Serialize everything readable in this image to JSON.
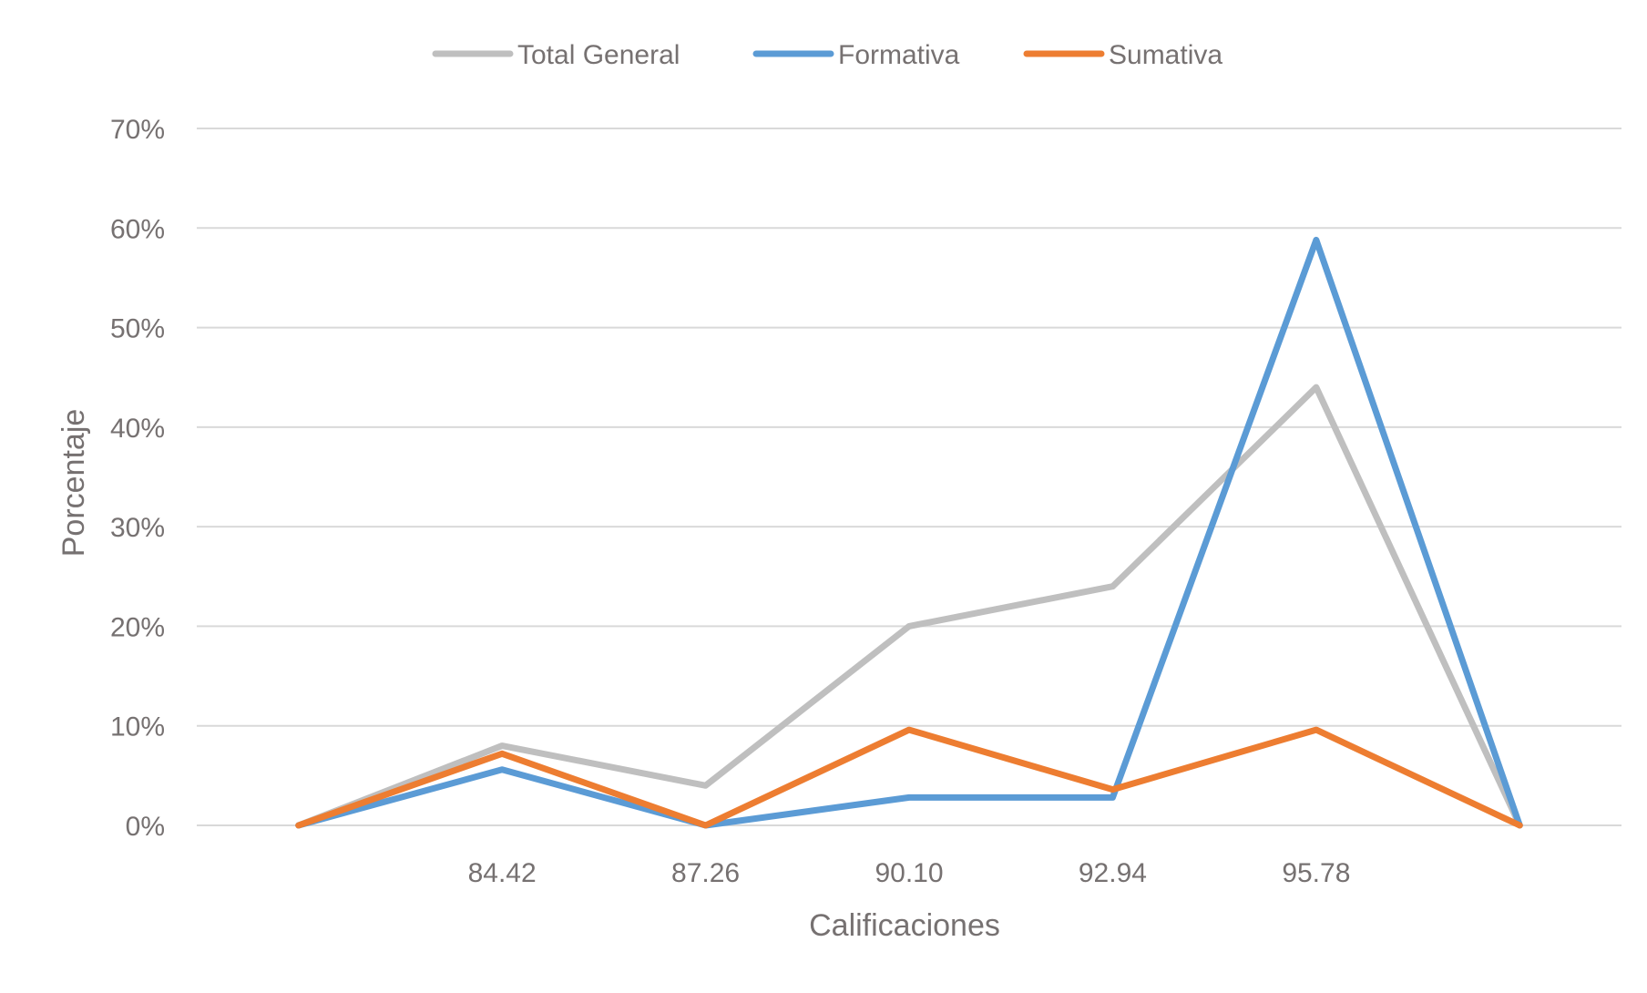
{
  "chart_data": {
    "type": "line",
    "xlabel": "Calificaciones",
    "ylabel": "Porcentaje",
    "categories": [
      "",
      "84.42",
      "87.26",
      "90.10",
      "92.94",
      "95.78",
      ""
    ],
    "ylim": [
      0,
      0.7
    ],
    "yticks": [
      0,
      0.1,
      0.2,
      0.3,
      0.4,
      0.5,
      0.6,
      0.7
    ],
    "ytick_labels": [
      "0%",
      "10%",
      "20%",
      "30%",
      "40%",
      "50%",
      "60%",
      "70%"
    ],
    "grid": true,
    "legend_position": "top",
    "series": [
      {
        "name": "Total General",
        "color": "#BFBFBF",
        "values": [
          0.0,
          0.08,
          0.04,
          0.2,
          0.24,
          0.44,
          0.0
        ]
      },
      {
        "name": "Formativa",
        "color": "#5B9BD5",
        "values": [
          0.0,
          0.056,
          0.0,
          0.028,
          0.028,
          0.588,
          0.0
        ]
      },
      {
        "name": "Sumativa",
        "color": "#ED7D31",
        "values": [
          0.0,
          0.072,
          0.0,
          0.096,
          0.036,
          0.096,
          0.0
        ]
      }
    ]
  }
}
